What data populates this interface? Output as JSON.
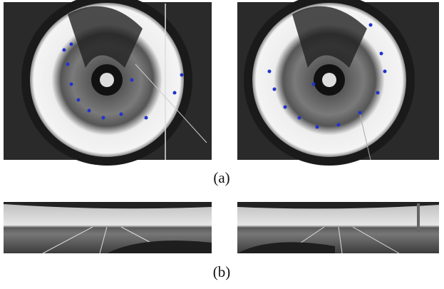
{
  "figure": {
    "captions": {
      "a": "(a)",
      "b": "(b)"
    }
  }
}
